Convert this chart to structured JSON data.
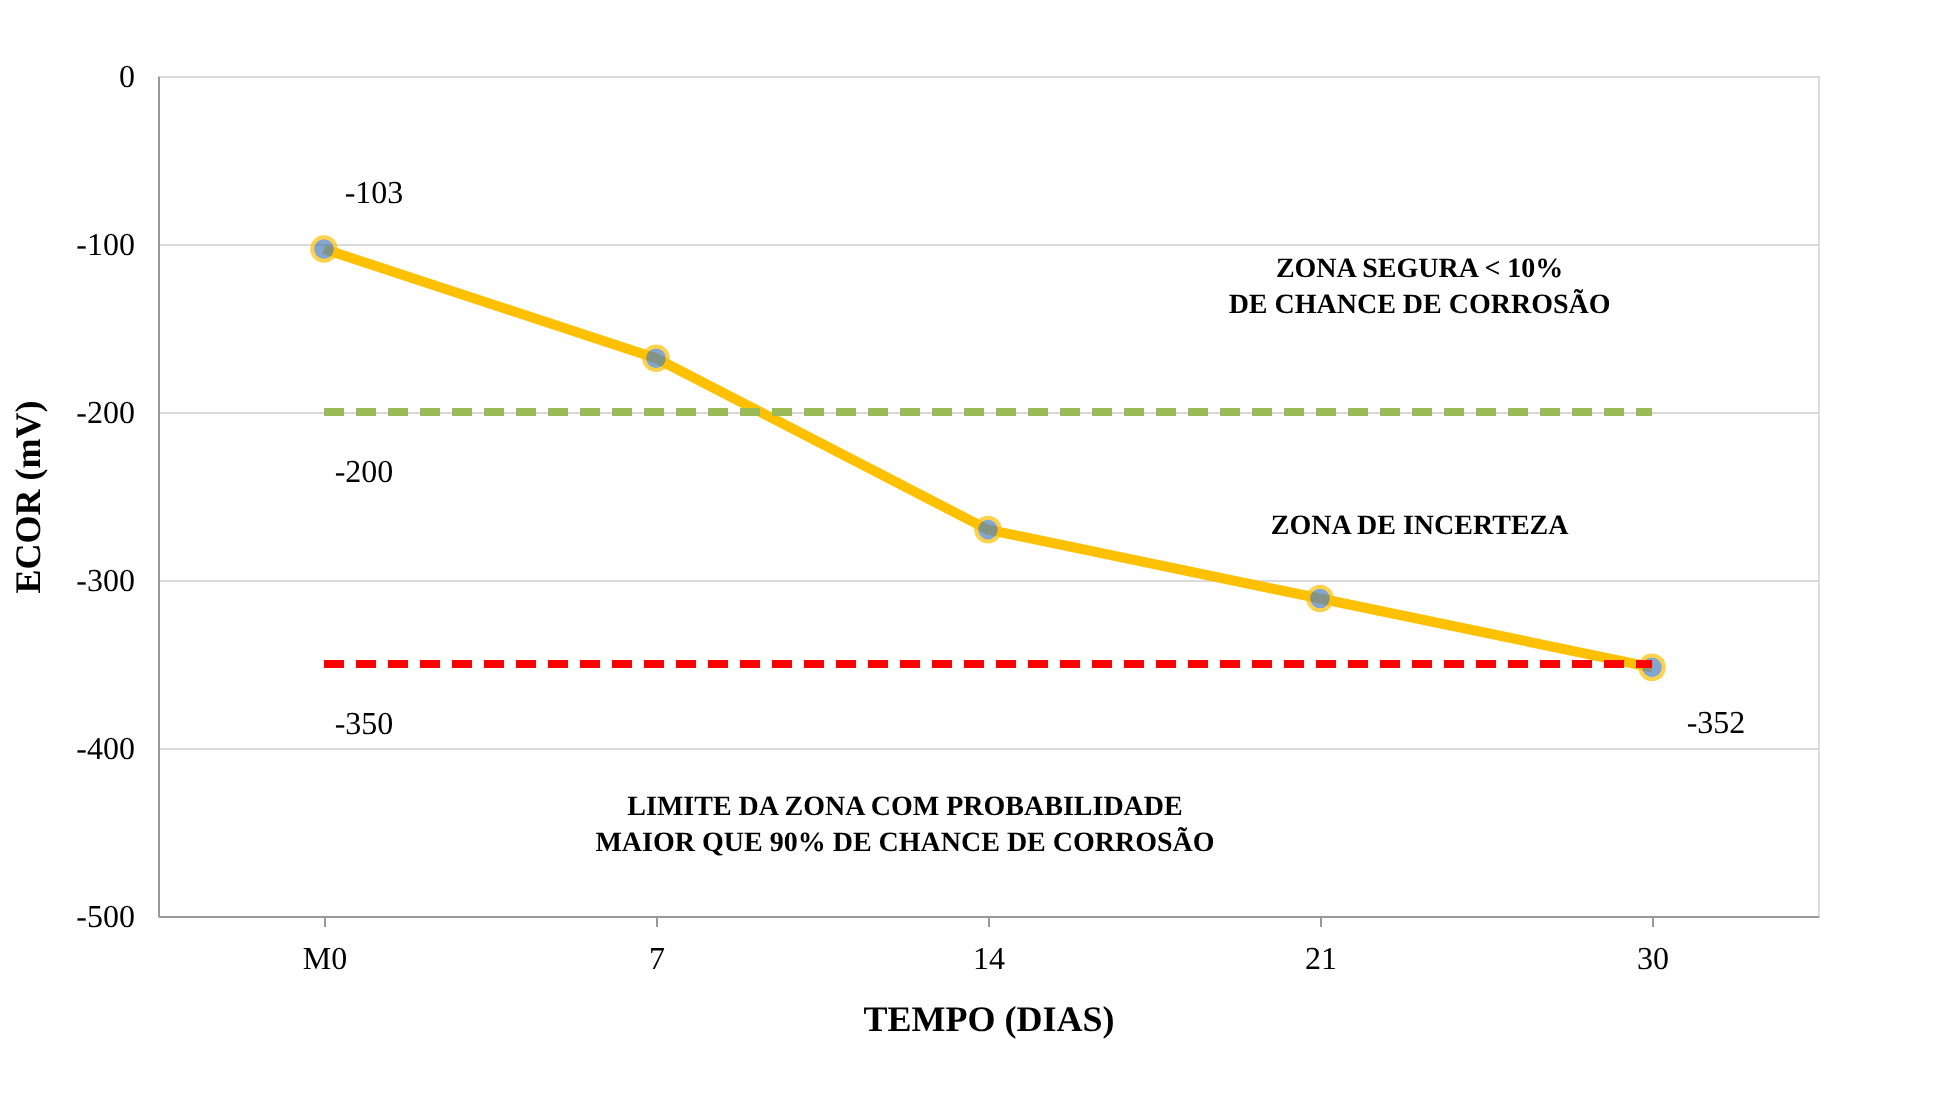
{
  "chart_data": {
    "type": "line",
    "xlabel": "TEMPO (DIAS)",
    "ylabel": "ECOR (mV)",
    "categories": [
      "M0",
      "7",
      "14",
      "21",
      "30"
    ],
    "series": [
      {
        "color": "#ffc000",
        "values": [
          -103,
          -168,
          -270,
          -311,
          -352
        ],
        "marker": "circle",
        "line_style": "solid",
        "value_labels": [
          "-103",
          null,
          null,
          null,
          "-352"
        ]
      },
      {
        "color": "#9bbb59",
        "values": [
          -200,
          -200,
          -200,
          -200,
          -200
        ],
        "marker": "none",
        "line_style": "dashed",
        "value_labels": [
          "-200",
          null,
          null,
          null,
          null
        ]
      },
      {
        "color": "#ff0000",
        "values": [
          -350,
          -350,
          -350,
          -350,
          -350
        ],
        "marker": "none",
        "line_style": "dashed",
        "value_labels": [
          "-350",
          null,
          null,
          null,
          null
        ]
      }
    ],
    "ylim": [
      -500,
      0
    ],
    "yticks": [
      -500,
      -400,
      -300,
      -200,
      -100,
      0
    ],
    "grid": "y",
    "annotations": [
      "ZONA SEGURA < 10%\nDE CHANCE DE CORROSÃO",
      "ZONA DE INCERTEZA",
      "LIMITE  DA ZONA COM PROBABILIDADE\nMAIOR QUE 90% DE CHANCE DE CORROSÃO"
    ]
  }
}
